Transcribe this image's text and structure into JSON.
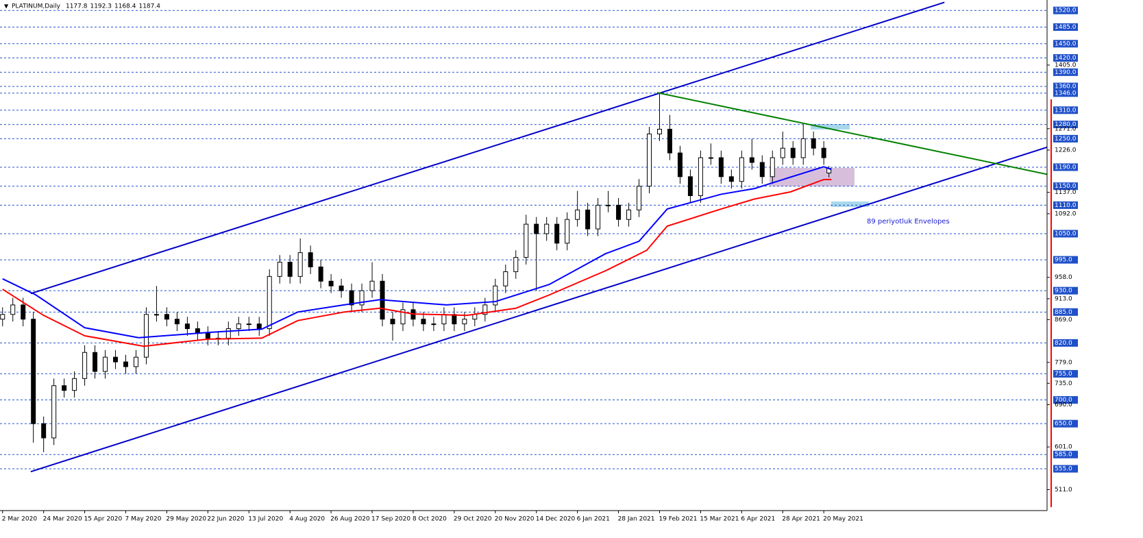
{
  "chart_data": {
    "type": "candlestick",
    "title": "PLATINUM,Daily",
    "last_bar": [
      1177.8,
      1192.3,
      1168.4,
      1187.4
    ],
    "x": [
      0,
      4,
      8,
      12,
      16,
      20,
      24,
      28,
      32,
      36,
      40,
      44,
      48,
      52,
      56,
      60,
      64,
      68,
      72,
      76,
      80,
      84,
      88,
      92,
      96,
      100,
      104,
      108,
      112,
      116,
      120,
      124,
      128,
      132,
      136,
      140,
      144,
      148,
      152,
      156,
      160,
      164,
      168,
      172,
      176,
      180,
      184,
      188,
      192,
      196,
      200,
      204,
      208,
      212,
      216,
      220,
      224,
      228,
      232,
      236,
      240,
      244,
      248,
      252,
      256,
      260,
      264,
      268,
      272,
      276,
      280,
      284,
      288,
      292,
      296,
      300,
      304,
      308,
      312,
      316,
      320,
      322
    ],
    "open": [
      870,
      880,
      900,
      870,
      650,
      620,
      730,
      720,
      745,
      800,
      760,
      790,
      780,
      770,
      790,
      880,
      880,
      870,
      860,
      850,
      840,
      830,
      830,
      850,
      860,
      860,
      850,
      960,
      990,
      960,
      1010,
      980,
      950,
      940,
      930,
      900,
      930,
      950,
      870,
      860,
      890,
      870,
      860,
      860,
      880,
      860,
      870,
      880,
      900,
      940,
      970,
      1000,
      1070,
      1050,
      1070,
      1030,
      1080,
      1100,
      1060,
      1110,
      1110,
      1080,
      1100,
      1150,
      1260,
      1270,
      1220,
      1170,
      1130,
      1210,
      1210,
      1170,
      1160,
      1210,
      1200,
      1170,
      1210,
      1230,
      1210,
      1250,
      1230,
      1177.8
    ],
    "high": [
      895,
      915,
      915,
      885,
      665,
      745,
      745,
      760,
      815,
      815,
      805,
      805,
      795,
      805,
      895,
      940,
      895,
      885,
      875,
      865,
      855,
      845,
      865,
      875,
      875,
      875,
      975,
      1005,
      1005,
      1040,
      1025,
      995,
      965,
      955,
      945,
      945,
      990,
      965,
      885,
      905,
      905,
      885,
      875,
      895,
      895,
      885,
      895,
      915,
      955,
      985,
      1015,
      1090,
      1085,
      1085,
      1085,
      1095,
      1140,
      1115,
      1125,
      1140,
      1125,
      1115,
      1165,
      1275,
      1346,
      1300,
      1235,
      1185,
      1225,
      1240,
      1225,
      1185,
      1225,
      1250,
      1215,
      1225,
      1265,
      1245,
      1280,
      1265,
      1245,
      1192.3
    ],
    "low": [
      855,
      865,
      855,
      610,
      590,
      605,
      705,
      705,
      730,
      745,
      745,
      765,
      755,
      755,
      775,
      865,
      855,
      845,
      835,
      825,
      815,
      815,
      815,
      835,
      845,
      835,
      835,
      945,
      945,
      945,
      965,
      935,
      925,
      915,
      885,
      885,
      915,
      855,
      825,
      845,
      855,
      845,
      845,
      845,
      845,
      845,
      855,
      865,
      885,
      925,
      955,
      985,
      930,
      1035,
      1015,
      1015,
      1065,
      1045,
      1045,
      1095,
      1065,
      1065,
      1085,
      1135,
      1245,
      1205,
      1155,
      1115,
      1115,
      1195,
      1155,
      1145,
      1145,
      1185,
      1155,
      1155,
      1195,
      1195,
      1195,
      1215,
      1195,
      1168.4
    ],
    "close": [
      880,
      900,
      870,
      650,
      620,
      730,
      720,
      745,
      800,
      760,
      790,
      780,
      770,
      790,
      880,
      880,
      870,
      860,
      850,
      840,
      830,
      830,
      850,
      860,
      860,
      850,
      960,
      990,
      960,
      1010,
      980,
      950,
      940,
      930,
      900,
      930,
      950,
      870,
      860,
      890,
      870,
      860,
      860,
      880,
      860,
      870,
      880,
      900,
      940,
      970,
      1000,
      1070,
      1050,
      1070,
      1030,
      1080,
      1100,
      1060,
      1110,
      1110,
      1080,
      1100,
      1150,
      1260,
      1270,
      1220,
      1170,
      1130,
      1210,
      1210,
      1170,
      1160,
      1210,
      1200,
      1170,
      1210,
      1230,
      1210,
      1250,
      1230,
      1210,
      1187.4
    ],
    "lines": [
      {
        "color": "#0000ff",
        "x": [
          0,
          13,
          32,
          53,
          80,
          101,
          115,
          133,
          147,
          173,
          192,
          213,
          235,
          248,
          259,
          280,
          293,
          307,
          320,
          323
        ],
        "values": [
          955,
          921,
          852,
          831,
          842,
          849,
          885,
          900,
          911,
          900,
          907,
          943,
          1008,
          1034,
          1102,
          1133,
          1145,
          1169,
          1191,
          1185
        ]
      },
      {
        "color": "#ff0000",
        "x": [
          0,
          16,
          32,
          55,
          80,
          101,
          115,
          133,
          147,
          160,
          181,
          200,
          213,
          235,
          251,
          259,
          280,
          293,
          307,
          320,
          323
        ],
        "values": [
          933,
          878,
          835,
          813,
          828,
          830,
          867,
          885,
          893,
          881,
          878,
          893,
          921,
          972,
          1015,
          1066,
          1102,
          1123,
          1138,
          1164,
          1164
        ]
      },
      {
        "color": "#0000c8",
        "x": [
          11,
          407
        ],
        "values": [
          549,
          1232
        ]
      },
      {
        "color": "#0000c8",
        "x": [
          11,
          367
        ],
        "values": [
          924,
          1537
        ]
      },
      {
        "color": "#008000",
        "x": [
          255,
          407
        ],
        "values": [
          1347,
          1175
        ]
      }
    ],
    "annotation": "89 periyotluk Envelopes",
    "xlim": [
      -1,
      407
    ],
    "ylim": [
      467,
      1542
    ],
    "xticks": [
      {
        "value": 0,
        "label": "2 Mar 2020"
      },
      {
        "value": 16,
        "label": "24 Mar 2020"
      },
      {
        "value": 32,
        "label": "15 Apr 2020"
      },
      {
        "value": 48,
        "label": "7 May 2020"
      },
      {
        "value": 64,
        "label": "29 May 2020"
      },
      {
        "value": 80,
        "label": "22 Jun 2020"
      },
      {
        "value": 96,
        "label": "13 Jul 2020"
      },
      {
        "value": 112,
        "label": "4 Aug 2020"
      },
      {
        "value": 128,
        "label": "26 Aug 2020"
      },
      {
        "value": 144,
        "label": "17 Sep 2020"
      },
      {
        "value": 160,
        "label": "8 Oct 2020"
      },
      {
        "value": 176,
        "label": "29 Oct 2020"
      },
      {
        "value": 192,
        "label": "20 Nov 2020"
      },
      {
        "value": 208,
        "label": "14 Dec 2020"
      },
      {
        "value": 224,
        "label": "6 Jan 2021"
      },
      {
        "value": 240,
        "label": "28 Jan 2021"
      },
      {
        "value": 256,
        "label": "19 Feb 2021"
      },
      {
        "value": 272,
        "label": "15 Mar 2021"
      },
      {
        "value": 288,
        "label": "6 Apr 2021"
      },
      {
        "value": 304,
        "label": "28 Apr 2021"
      },
      {
        "value": 320,
        "label": "20 May 2021"
      }
    ],
    "yticks": [
      {
        "value": 1405,
        "label": "1405.0"
      },
      {
        "value": 1271,
        "label": "1271.0"
      },
      {
        "value": 1226,
        "label": "1226.0"
      },
      {
        "value": 1137,
        "label": "1137.0"
      },
      {
        "value": 1092,
        "label": "1092.0"
      },
      {
        "value": 958,
        "label": "958.0"
      },
      {
        "value": 913,
        "label": "913.0"
      },
      {
        "value": 869,
        "label": "869.0"
      },
      {
        "value": 779,
        "label": "779.0"
      },
      {
        "value": 735,
        "label": "735.0"
      },
      {
        "value": 690,
        "label": "690.0"
      },
      {
        "value": 601,
        "label": "601.0"
      },
      {
        "value": 511,
        "label": "511.0"
      }
    ],
    "levels": [
      {
        "value": 1520,
        "label": "1520.0"
      },
      {
        "value": 1485,
        "label": "1485.0"
      },
      {
        "value": 1450,
        "label": "1450.0"
      },
      {
        "value": 1420,
        "label": "1420.0"
      },
      {
        "value": 1390,
        "label": "1390.0"
      },
      {
        "value": 1360,
        "label": "1360.0"
      },
      {
        "value": 1346,
        "label": "1346.0"
      },
      {
        "value": 1310,
        "label": "1310.0"
      },
      {
        "value": 1280,
        "label": "1280.0"
      },
      {
        "value": 1250,
        "label": "1250.0"
      },
      {
        "value": 1190,
        "label": "1190.0"
      },
      {
        "value": 1150,
        "label": "1150.0"
      },
      {
        "value": 1110,
        "label": "1110.0"
      },
      {
        "value": 1050,
        "label": "1050.0"
      },
      {
        "value": 995,
        "label": "995.0"
      },
      {
        "value": 930,
        "label": "930.0"
      },
      {
        "value": 885,
        "label": "885.0"
      },
      {
        "value": 820,
        "label": "820.0"
      },
      {
        "value": 755,
        "label": "755.0"
      },
      {
        "value": 700,
        "label": "700.0"
      },
      {
        "value": 650,
        "label": "650.0"
      },
      {
        "value": 585,
        "label": "585.0"
      },
      {
        "value": 555,
        "label": "555.0"
      }
    ],
    "level_color": "#2050c8",
    "bull_color": "#ffffff",
    "bear_color": "#000000"
  }
}
